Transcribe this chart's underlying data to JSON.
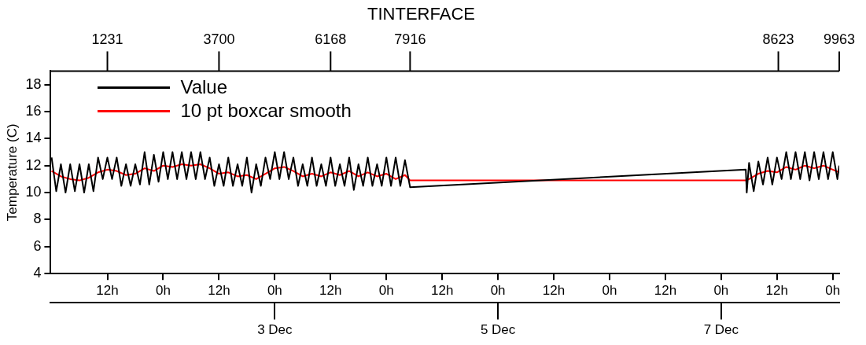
{
  "chart_data": {
    "type": "line",
    "title": "TINTERFACE",
    "ylabel": "Temperature (C)",
    "legend": "top left",
    "marker": "none",
    "xlim": [
      "--11-30T23:48",
      "--12-08T01:24"
    ],
    "xticks": [
      {
        "value": "--12-01T12:00",
        "label": "12h"
      },
      {
        "value": "--12-02T00:00",
        "label": "0h"
      },
      {
        "value": "--12-02T12:00",
        "label": "12h"
      },
      {
        "value": "--12-03T00:00",
        "label": "0h"
      },
      {
        "value": "--12-03T12:00",
        "label": "12h"
      },
      {
        "value": "--12-04T00:00",
        "label": "0h"
      },
      {
        "value": "--12-04T12:00",
        "label": "12h"
      },
      {
        "value": "--12-05T00:00",
        "label": "0h"
      },
      {
        "value": "--12-05T12:00",
        "label": "12h"
      },
      {
        "value": "--12-06T00:00",
        "label": "0h"
      },
      {
        "value": "--12-06T12:00",
        "label": "12h"
      },
      {
        "value": "--12-07T00:00",
        "label": "0h"
      },
      {
        "value": "--12-07T12:00",
        "label": "12h"
      },
      {
        "value": "--12-08T00:00",
        "label": "0h"
      }
    ],
    "x2lim": [
      "--11-30T23:48",
      "--12-08T01:24"
    ],
    "x2ticks": [
      {
        "value": "--12-03",
        "label": "3 Dec"
      },
      {
        "value": "--12-05",
        "label": "5 Dec"
      },
      {
        "value": "--12-07",
        "label": "7 Dec"
      }
    ],
    "annotations": [
      {
        "text": "1231",
        "x": "--12-01T12:00"
      },
      {
        "text": "3700",
        "x": "--12-02T12:00"
      },
      {
        "text": "6168",
        "x": "--12-03T12:00"
      },
      {
        "text": "7916",
        "x": "--12-04T05:06"
      },
      {
        "text": "8623",
        "x": "--12-07T12:18"
      },
      {
        "text": "9963",
        "x": "--12-08T01:24"
      }
    ],
    "ylim": [
      4,
      19
    ],
    "yticks": [
      4,
      6,
      8,
      10,
      12,
      14,
      16,
      18
    ],
    "series": [
      {
        "name": "Value",
        "color": "#000000",
        "x": [
          "--12-01T00:00",
          "--12-01T01:00",
          "--12-01T02:00",
          "--12-01T03:00",
          "--12-01T04:00",
          "--12-01T05:00",
          "--12-01T06:00",
          "--12-01T07:00",
          "--12-01T08:00",
          "--12-01T09:00",
          "--12-01T10:00",
          "--12-01T11:00",
          "--12-01T12:00",
          "--12-01T13:00",
          "--12-01T14:00",
          "--12-01T15:00",
          "--12-01T16:00",
          "--12-01T17:00",
          "--12-01T18:00",
          "--12-01T19:00",
          "--12-01T20:00",
          "--12-01T21:00",
          "--12-01T22:00",
          "--12-01T23:00",
          "--12-02T00:00",
          "--12-02T01:00",
          "--12-02T02:00",
          "--12-02T03:00",
          "--12-02T04:00",
          "--12-02T05:00",
          "--12-02T06:00",
          "--12-02T07:00",
          "--12-02T08:00",
          "--12-02T09:00",
          "--12-02T10:00",
          "--12-02T11:00",
          "--12-02T12:00",
          "--12-02T13:00",
          "--12-02T14:00",
          "--12-02T15:00",
          "--12-02T16:00",
          "--12-02T17:00",
          "--12-02T18:00",
          "--12-02T19:00",
          "--12-02T20:00",
          "--12-02T21:00",
          "--12-02T22:00",
          "--12-02T23:00",
          "--12-03T00:00",
          "--12-03T01:00",
          "--12-03T02:00",
          "--12-03T03:00",
          "--12-03T04:00",
          "--12-03T05:00",
          "--12-03T06:00",
          "--12-03T07:00",
          "--12-03T08:00",
          "--12-03T09:00",
          "--12-03T10:00",
          "--12-03T11:00",
          "--12-03T12:00",
          "--12-03T13:00",
          "--12-03T14:00",
          "--12-03T15:00",
          "--12-03T16:00",
          "--12-03T17:00",
          "--12-03T18:00",
          "--12-03T19:00",
          "--12-03T20:00",
          "--12-03T21:00",
          "--12-03T22:00",
          "--12-03T23:00",
          "--12-04T00:00",
          "--12-04T01:00",
          "--12-04T02:00",
          "--12-04T03:00",
          "--12-04T04:00",
          "--12-04T05:06",
          "--12-07T05:18",
          "--12-07T05:30",
          "--12-07T06:00",
          "--12-07T07:00",
          "--12-07T08:00",
          "--12-07T09:00",
          "--12-07T10:00",
          "--12-07T11:00",
          "--12-07T12:00",
          "--12-07T13:00",
          "--12-07T14:00",
          "--12-07T15:00",
          "--12-07T16:00",
          "--12-07T17:00",
          "--12-07T18:00",
          "--12-07T19:00",
          "--12-07T20:00",
          "--12-07T21:00",
          "--12-07T22:00",
          "--12-07T23:00",
          "--12-08T00:00",
          "--12-08T01:00",
          "--12-08T01:24"
        ],
        "values": [
          12.6,
          10.1,
          12.1,
          10.0,
          12.1,
          10.1,
          12.1,
          10.0,
          12.1,
          10.1,
          12.6,
          11.0,
          12.6,
          11.0,
          12.6,
          10.5,
          12.1,
          10.5,
          12.1,
          10.6,
          13.0,
          10.6,
          12.8,
          10.8,
          13.0,
          11.0,
          13.0,
          11.0,
          13.0,
          11.0,
          13.0,
          11.0,
          13.0,
          11.0,
          12.6,
          10.5,
          12.1,
          10.5,
          12.6,
          10.5,
          12.1,
          10.5,
          12.6,
          10.0,
          12.1,
          10.5,
          12.6,
          11.0,
          13.0,
          11.0,
          13.0,
          11.0,
          12.6,
          10.5,
          12.1,
          10.5,
          12.6,
          10.5,
          12.1,
          10.5,
          12.6,
          10.5,
          12.1,
          10.5,
          12.6,
          10.2,
          12.1,
          10.5,
          12.6,
          10.5,
          12.1,
          10.5,
          12.6,
          10.5,
          12.6,
          10.5,
          12.4,
          10.4,
          11.7,
          10.0,
          12.2,
          10.1,
          12.3,
          10.6,
          12.6,
          10.6,
          12.6,
          11.0,
          13.0,
          11.0,
          13.0,
          11.0,
          13.0,
          10.9,
          13.0,
          11.0,
          13.0,
          11.0,
          13.0,
          11.0,
          12.0
        ]
      },
      {
        "name": "10 pt boxcar smooth",
        "color": "#ff0000",
        "x": [
          "--12-01T00:00",
          "--12-01T02:00",
          "--12-01T04:00",
          "--12-01T06:00",
          "--12-01T08:00",
          "--12-01T10:00",
          "--12-01T12:00",
          "--12-01T14:00",
          "--12-01T16:00",
          "--12-01T18:00",
          "--12-01T20:00",
          "--12-01T22:00",
          "--12-02T00:00",
          "--12-02T02:00",
          "--12-02T04:00",
          "--12-02T06:00",
          "--12-02T08:00",
          "--12-02T10:00",
          "--12-02T12:00",
          "--12-02T14:00",
          "--12-02T16:00",
          "--12-02T18:00",
          "--12-02T20:00",
          "--12-02T22:00",
          "--12-03T00:00",
          "--12-03T02:00",
          "--12-03T04:00",
          "--12-03T06:00",
          "--12-03T08:00",
          "--12-03T10:00",
          "--12-03T12:00",
          "--12-03T14:00",
          "--12-03T16:00",
          "--12-03T18:00",
          "--12-03T20:00",
          "--12-03T22:00",
          "--12-04T00:00",
          "--12-04T02:00",
          "--12-04T04:00",
          "--12-04T05:06",
          "--12-07T05:18",
          "--12-07T06:00",
          "--12-07T08:00",
          "--12-07T10:00",
          "--12-07T12:00",
          "--12-07T14:00",
          "--12-07T16:00",
          "--12-07T18:00",
          "--12-07T20:00",
          "--12-07T22:00",
          "--12-08T00:00",
          "--12-08T01:24"
        ],
        "values": [
          11.6,
          11.2,
          11.0,
          10.9,
          11.1,
          11.5,
          11.7,
          11.6,
          11.3,
          11.4,
          11.8,
          11.6,
          12.0,
          11.9,
          12.1,
          12.0,
          12.1,
          11.8,
          11.4,
          11.5,
          11.2,
          11.3,
          11.0,
          11.4,
          11.8,
          11.9,
          11.6,
          11.2,
          11.4,
          11.2,
          11.5,
          11.3,
          11.6,
          11.2,
          11.5,
          11.2,
          11.4,
          11.0,
          11.3,
          10.9,
          10.9,
          11.0,
          11.4,
          11.6,
          11.5,
          11.9,
          11.7,
          12.0,
          11.8,
          12.0,
          11.7,
          11.5
        ]
      }
    ]
  }
}
